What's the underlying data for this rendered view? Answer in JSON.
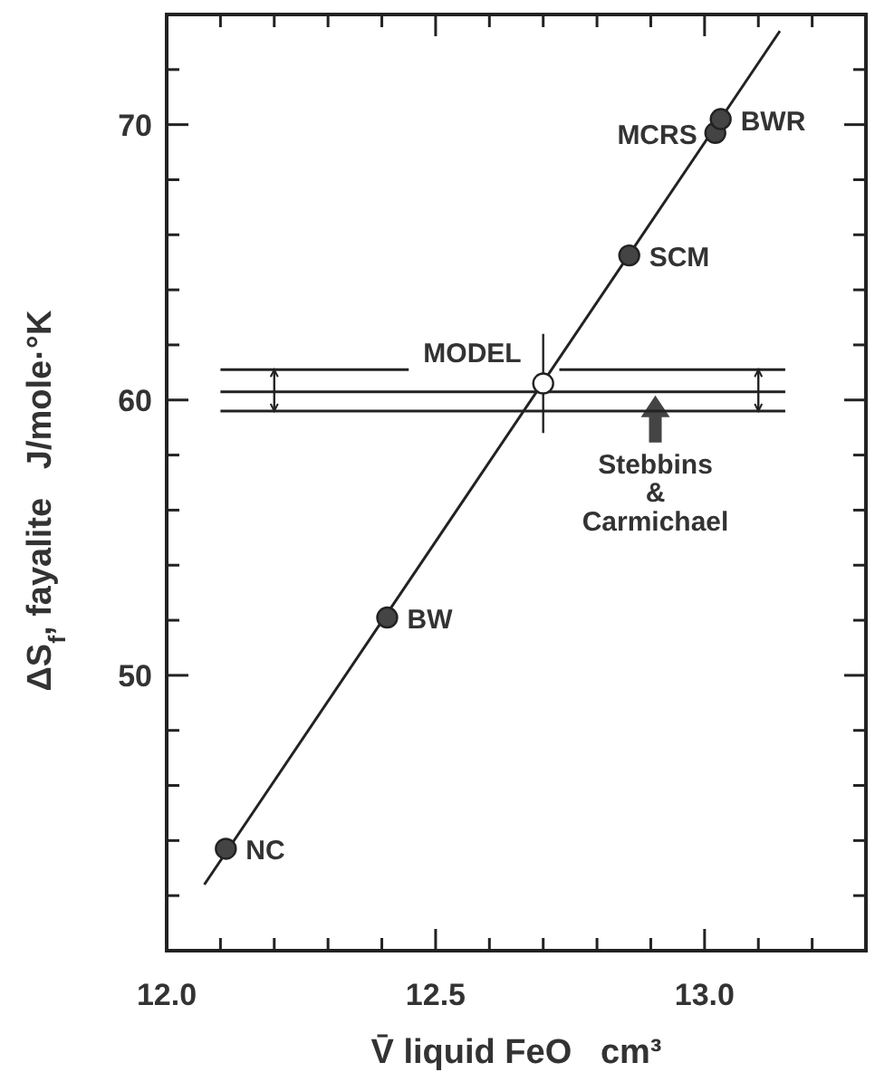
{
  "chart_data": {
    "type": "scatter",
    "xlabel": "V̄ liquid FeO   cm³",
    "ylabel": "ΔS$_{f}$, fayalite   J/mole·°K",
    "xlim": [
      12.0,
      13.3
    ],
    "ylim": [
      40,
      74
    ],
    "xticks": [
      {
        "value": 12.0,
        "label": "12.0"
      },
      {
        "value": 12.1,
        "label": null
      },
      {
        "value": 12.2,
        "label": null
      },
      {
        "value": 12.3,
        "label": null
      },
      {
        "value": 12.4,
        "label": null
      },
      {
        "value": 12.5,
        "label": "12.5"
      },
      {
        "value": 12.6,
        "label": null
      },
      {
        "value": 12.7,
        "label": null
      },
      {
        "value": 12.8,
        "label": null
      },
      {
        "value": 12.9,
        "label": null
      },
      {
        "value": 13.0,
        "label": "13.0"
      },
      {
        "value": 13.1,
        "label": null
      },
      {
        "value": 13.2,
        "label": null
      }
    ],
    "yticks": [
      {
        "value": 42,
        "label": null
      },
      {
        "value": 44,
        "label": null
      },
      {
        "value": 46,
        "label": null
      },
      {
        "value": 48,
        "label": null
      },
      50,
      {
        "value": 52,
        "label": null
      },
      {
        "value": 54,
        "label": null
      },
      {
        "value": 56,
        "label": null
      },
      {
        "value": 58,
        "label": null
      },
      60,
      {
        "value": 62,
        "label": null
      },
      {
        "value": 64,
        "label": null
      },
      {
        "value": 66,
        "label": null
      },
      {
        "value": 68,
        "label": null
      },
      70,
      {
        "value": 72,
        "label": null
      }
    ],
    "grid": false,
    "legend": false,
    "marker": "circle",
    "series": [
      {
        "type": "line",
        "color": "#222222",
        "x": [
          12.07,
          13.14
        ],
        "values": [
          42.4,
          73.4
        ],
        "marker": "none"
      },
      {
        "type": "line",
        "color": "#222222",
        "x": [
          12.1,
          12.45,
          12.6,
          12.73,
          13.15
        ],
        "values": [
          61.1,
          61.1,
          null,
          61.1,
          61.1
        ],
        "marker": "none"
      },
      {
        "type": "line",
        "name": "Stebbins & Carmichael",
        "color": "#222222",
        "x": [
          12.1,
          12.2,
          13.1,
          13.15
        ],
        "values": [
          60.3,
          60.3,
          60.3,
          60.3
        ],
        "errors": [
          null,
          [
            59.6,
            61.1
          ],
          [
            59.6,
            61.1
          ],
          null
        ],
        "marker": "none"
      },
      {
        "type": "line",
        "color": "#222222",
        "x": [
          12.1,
          13.15
        ],
        "values": [
          59.6,
          59.6
        ],
        "marker": "none"
      },
      {
        "color": "#444444",
        "x": [
          12.11,
          12.41,
          12.86,
          13.02,
          13.03
        ],
        "values": [
          43.7,
          52.1,
          65.25,
          69.7,
          70.2
        ]
      },
      {
        "name": "MODEL",
        "color": "#ffffff",
        "x": [
          12.7
        ],
        "values": [
          60.6
        ],
        "errors": [
          [
            58.8,
            62.4
          ]
        ]
      }
    ],
    "annotations": [
      {
        "text": "NC",
        "x": 12.11,
        "y": 43.7
      },
      {
        "text": "BW",
        "x": 12.41,
        "y": 52.1
      },
      {
        "text": "SCM",
        "x": 12.86,
        "y": 65.25
      },
      {
        "text": "MCRS",
        "x": 13.02,
        "y": 69.7
      },
      {
        "text": "BWR",
        "x": 13.03,
        "y": 70.2
      }
    ]
  }
}
